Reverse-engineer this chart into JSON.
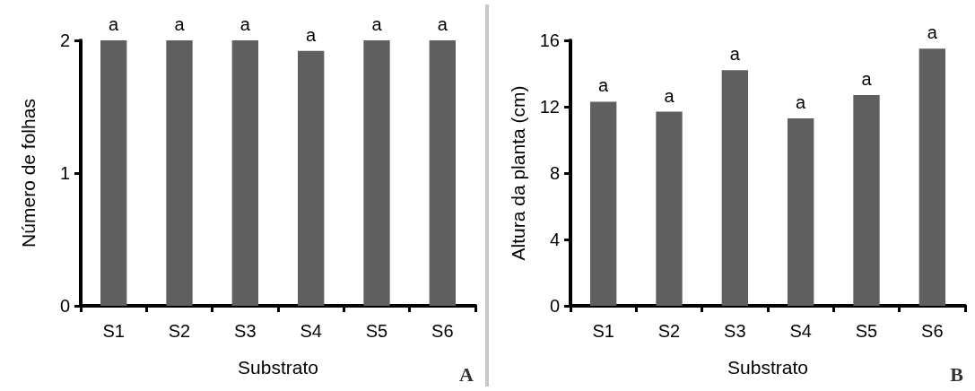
{
  "chart_data": [
    {
      "type": "bar",
      "categories": [
        "S1",
        "S2",
        "S3",
        "S4",
        "S5",
        "S6"
      ],
      "values": [
        2,
        2,
        2,
        1.92,
        2,
        2
      ],
      "color": "#5f5f5f",
      "value_labels": [
        "a",
        "a",
        "a",
        "a",
        "a",
        "a"
      ],
      "xlabel": "Substrato",
      "ylabel": "Número de folhas",
      "ylim": [
        0,
        2
      ],
      "yticks": [
        0,
        1,
        2
      ],
      "grid": false,
      "annotations": [
        "A"
      ]
    },
    {
      "type": "bar",
      "categories": [
        "S1",
        "S2",
        "S3",
        "S4",
        "S5",
        "S6"
      ],
      "values": [
        12.3,
        11.7,
        14.2,
        11.3,
        12.7,
        15.5
      ],
      "color": "#5f5f5f",
      "value_labels": [
        "a",
        "a",
        "a",
        "a",
        "a",
        "a"
      ],
      "xlabel": "Substrato",
      "ylabel": "Altura da planta (cm)",
      "ylim": [
        0,
        16
      ],
      "yticks": [
        0,
        4,
        8,
        12,
        16
      ],
      "grid": false,
      "annotations": [
        "B"
      ]
    }
  ]
}
